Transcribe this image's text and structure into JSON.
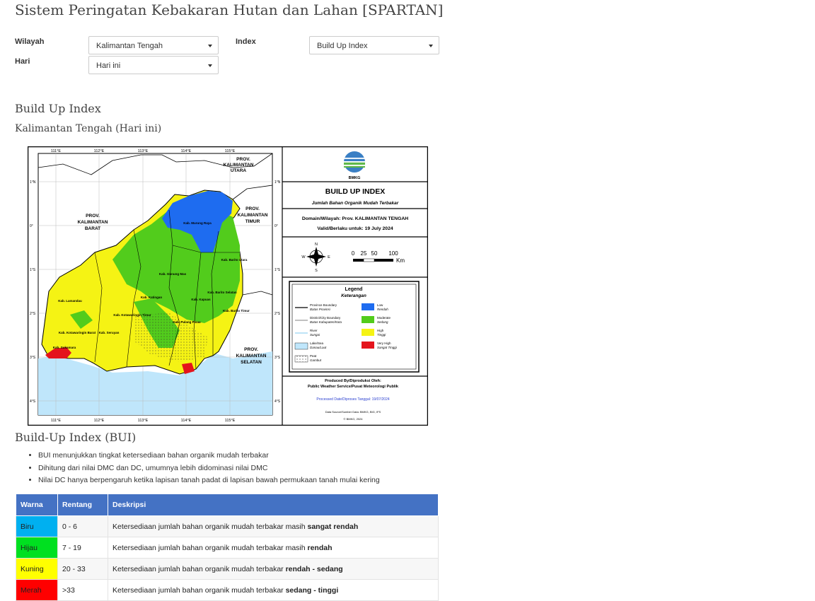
{
  "page": {
    "title": "Sistem Peringatan Kebakaran Hutan dan Lahan [SPARTAN]"
  },
  "filters": {
    "wilayah_label": "Wilayah",
    "wilayah_value": "Kalimantan Tengah",
    "hari_label": "Hari",
    "hari_value": "Hari ini",
    "index_label": "Index",
    "index_value": "Build Up Index"
  },
  "section": {
    "title": "Build Up Index",
    "subtitle": "Kalimantan Tengah (Hari ini)"
  },
  "map": {
    "lon_labels": [
      "111°E",
      "112°E",
      "113°E",
      "114°E",
      "115°E"
    ],
    "lat_labels": [
      "1°N",
      "0°",
      "1°S",
      "2°S",
      "3°S",
      "4°S"
    ],
    "provinces": {
      "utara": [
        "PROV.",
        "KALIMANTAN",
        "UTARA"
      ],
      "barat": [
        "PROV.",
        "KALIMANTAN",
        "BARAT"
      ],
      "timur": [
        "PROV.",
        "KALIMANTAN",
        "TIMUR"
      ],
      "selatan": [
        "PROV.",
        "KALIMANTAN",
        "SELATAN"
      ]
    },
    "districts": [
      "Kab. Murung Raya",
      "Kab. Barito Utara",
      "Kab. Gunung Mas",
      "Kab. Lamandau",
      "Kab. Katingan",
      "Kab. Kapuas",
      "Kab. Barito Selatan",
      "Kab. Barito Timur",
      "Kab. Kotawaringin Timur",
      "Kab. Kotawaringin Barat",
      "Kab. Seruyan",
      "Kab. Pulang Pisau",
      "Kab. Sukamara"
    ],
    "logo_text": "BMKG",
    "title": "BUILD UP INDEX",
    "subtitle": "Jumlah Bahan Organik Mudah Terbakar",
    "domain_text": "Domain/Wilayah: Prov. KALIMANTAN TENGAH",
    "valid_text": "Valid/Berlaku untuk: 19 July 2024",
    "scale_labels": [
      "0",
      "25",
      "50",
      "100"
    ],
    "scale_unit": "Km",
    "compass": [
      "N",
      "E",
      "S",
      "W"
    ],
    "legend_title": "Legend",
    "legend_subtitle": "Keterangan",
    "legend_left": [
      {
        "en": "Province Boundary",
        "id": "Batas Provinsi"
      },
      {
        "en": "District/City Boundary",
        "id": "Batas Kabupaten/Kota"
      },
      {
        "en": "River",
        "id": "Sungai"
      },
      {
        "en": "Lake/Sea",
        "id": "Danau/Laut"
      },
      {
        "en": "Peat",
        "id": "Gambut"
      }
    ],
    "legend_right": [
      {
        "en": "Low",
        "id": "Rendah",
        "color": "#1e6cf0"
      },
      {
        "en": "Moderate",
        "id": "Sedang",
        "color": "#52cc1c"
      },
      {
        "en": "High",
        "id": "Tinggi",
        "color": "#f5f314"
      },
      {
        "en": "Very High",
        "id": "Sangat Tinggi",
        "color": "#e4141c"
      }
    ],
    "produced_by": "Produced By/Diproduksi Oleh:",
    "produced_org": "Public Weather Service/Pusat Meteorologi Publik",
    "processed": "Processed Date/Diproses Tanggal: 19/07/2024",
    "source": "Data Source/Sumber Data: BMKG, BIG, IFS",
    "copyright": "© BMKG, 2024"
  },
  "bui": {
    "title": "Build-Up Index (BUI)",
    "bullets": [
      "BUI menunjukkan tingkat ketersediaan bahan organik mudah terbakar",
      "Dihitung dari nilai DMC dan DC, umumnya lebih didominasi nilai DMC",
      "Nilai DC hanya berpengaruh ketika lapisan tanah padat di lapisan bawah permukaan tanah mulai kering"
    ],
    "headers": [
      "Warna",
      "Rentang",
      "Deskripsi"
    ],
    "rows": [
      {
        "warna": "Biru",
        "color": "#00b0f0",
        "rentang": "0 - 6",
        "desc": "Ketersediaan jumlah bahan organik mudah terbakar masih ",
        "bold": "sangat rendah"
      },
      {
        "warna": "Hijau",
        "color": "#00e020",
        "rentang": "7 - 19",
        "desc": "Ketersediaan jumlah bahan organik mudah terbakar masih ",
        "bold": "rendah"
      },
      {
        "warna": "Kuning",
        "color": "#ffff00",
        "rentang": "20 - 33",
        "desc": "Ketersediaan jumlah bahan organik mudah terbakar ",
        "bold": "rendah - sedang"
      },
      {
        "warna": "Merah",
        "color": "#ff0000",
        "rentang": ">33",
        "desc": "Ketersediaan jumlah bahan organik mudah terbakar ",
        "bold": "sedang - tinggi"
      }
    ]
  }
}
